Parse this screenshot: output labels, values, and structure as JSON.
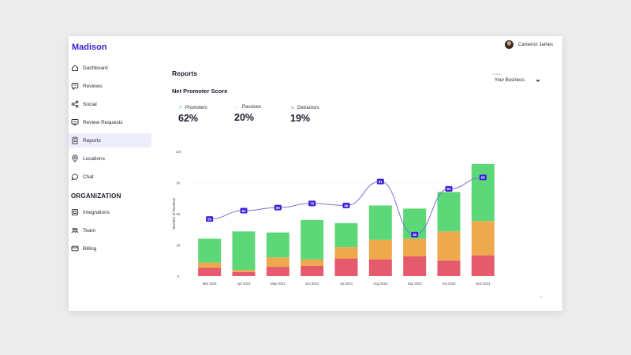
{
  "app": {
    "name": "Madison"
  },
  "user": {
    "name": "Cameron James"
  },
  "sidebar": {
    "items": [
      {
        "label": "Dashboard",
        "icon": "home-icon",
        "name": "sidebar-item-dashboard"
      },
      {
        "label": "Reviews",
        "icon": "reviews-icon",
        "name": "sidebar-item-reviews"
      },
      {
        "label": "Social",
        "icon": "share-icon",
        "name": "sidebar-item-social"
      },
      {
        "label": "Review Requests",
        "icon": "message-icon",
        "name": "sidebar-item-review-requests"
      },
      {
        "label": "Reports",
        "icon": "clipboard-icon",
        "name": "sidebar-item-reports",
        "active": true
      },
      {
        "label": "Locations",
        "icon": "location-icon",
        "name": "sidebar-item-locations"
      },
      {
        "label": "Chat",
        "icon": "chat-icon",
        "name": "sidebar-item-chat"
      }
    ],
    "section_heading": "ORGANIZATION",
    "org_items": [
      {
        "label": "Integrations",
        "icon": "integrations-icon",
        "name": "sidebar-item-integrations"
      },
      {
        "label": "Team",
        "icon": "team-icon",
        "name": "sidebar-item-team"
      },
      {
        "label": "Billing",
        "icon": "billing-icon",
        "name": "sidebar-item-billing"
      }
    ]
  },
  "main": {
    "title": "Reports",
    "business_select": {
      "label": "Location",
      "value": "Your Business"
    },
    "nps_title": "Net Promoter Score",
    "metrics": [
      {
        "label": "Promoters",
        "value": "62%",
        "arrow": "↗",
        "color": "#3fbf5b"
      },
      {
        "label": "Passives",
        "value": "20%",
        "arrow": "→",
        "color": "#e8993a"
      },
      {
        "label": "Detractors",
        "value": "19%",
        "arrow": "↘",
        "color": "#e0475e"
      }
    ]
  },
  "colors": {
    "accent": "#3a22d6",
    "promoters": "#5dd879",
    "passives": "#eda94b",
    "detractors": "#e55a6c",
    "line": "#7a6fd6"
  },
  "chart_data": {
    "type": "bar",
    "categories": [
      "Mar 2023",
      "Apr 2023",
      "May 2023",
      "Jun 2023",
      "Jul 2023",
      "Aug 2023",
      "Sep 2023",
      "Oct 2023",
      "Nov 2023"
    ],
    "series": [
      {
        "name": "Detractors",
        "values": [
          8,
          4,
          9,
          10,
          17,
          16,
          19,
          15,
          20
        ]
      },
      {
        "name": "Passives",
        "values": [
          5,
          2,
          9,
          6,
          11,
          19,
          17,
          28,
          33
        ]
      },
      {
        "name": "Promoters",
        "values": [
          23,
          37,
          24,
          38,
          23,
          33,
          29,
          38,
          55
        ]
      }
    ],
    "line_series": {
      "values": [
        55,
        63,
        66,
        70,
        68,
        91,
        40,
        84,
        95
      ],
      "labels": [
        "55",
        "63",
        "66",
        "70",
        "68",
        "91",
        "40",
        "84",
        "95"
      ]
    },
    "ylabel": "Number of Reviews",
    "xlabel": "",
    "ylim": [
      0,
      120
    ],
    "yticks": [
      0,
      30,
      60,
      90,
      120
    ],
    "grid": false,
    "stacked": true
  }
}
